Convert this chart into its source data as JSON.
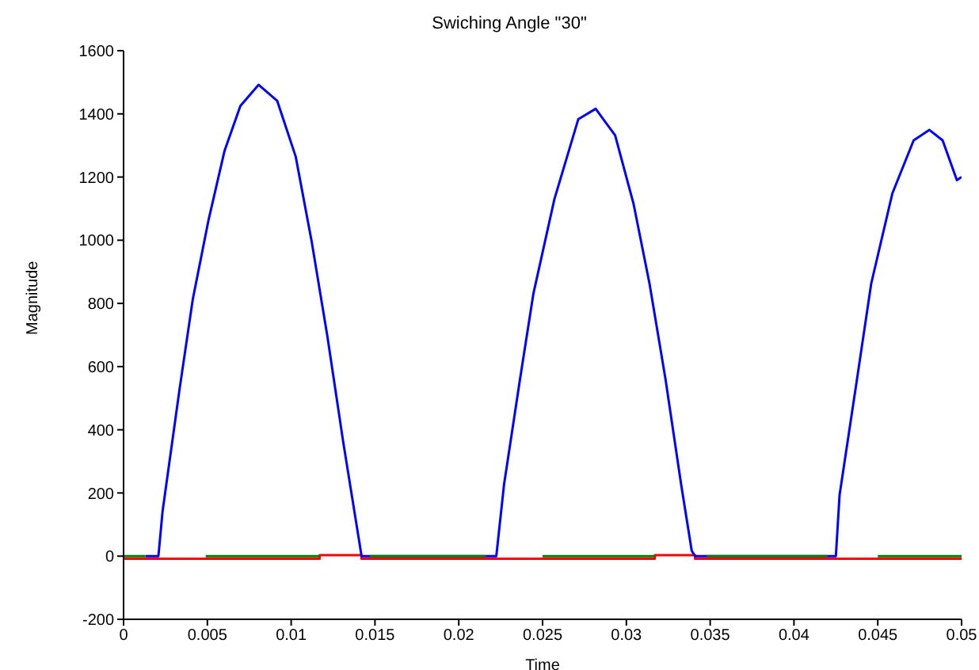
{
  "chart_data": {
    "type": "line",
    "title": "Swiching Angle \"30\"",
    "xlabel": "Time",
    "ylabel": "Magnitude",
    "xlim": [
      0,
      0.05
    ],
    "xticks": [
      0,
      0.005,
      0.01,
      0.015,
      0.02,
      0.025,
      0.03,
      0.035,
      0.04,
      0.045,
      0.05
    ],
    "ylim": [
      -200,
      1600
    ],
    "yticks": [
      -200,
      0,
      200,
      400,
      600,
      800,
      1000,
      1200,
      1400,
      1600
    ],
    "grid": false,
    "legend": false,
    "marker": "none",
    "line_style": "solid",
    "series": [
      {
        "color": "#ff0000",
        "x": [
          0,
          0.0117,
          0.0117,
          0.0142,
          0.0142,
          0.0317,
          0.0317,
          0.0341,
          0.0341,
          0.05
        ],
        "values": [
          -8,
          -8,
          3,
          3,
          -8,
          -8,
          3,
          3,
          -8,
          -8
        ]
      },
      {
        "color": "#0000ff",
        "x": [
          0.0013,
          0.00208,
          0.00233,
          0.00334,
          0.00413,
          0.00507,
          0.00602,
          0.00697,
          0.00806,
          0.00917,
          0.01027,
          0.01122,
          0.01216,
          0.01311,
          0.01405,
          0.0142,
          0.02224,
          0.0227,
          0.02366,
          0.02445,
          0.02571,
          0.02713,
          0.02817,
          0.02933,
          0.03043,
          0.03138,
          0.03233,
          0.03327,
          0.0339,
          0.0341,
          0.0425,
          0.04272,
          0.04367,
          0.04461,
          0.04587,
          0.04714,
          0.04808,
          0.04887,
          0.04972,
          0.05
        ],
        "values": [
          0,
          0,
          143,
          528,
          813,
          1064,
          1282,
          1425,
          1492,
          1441,
          1265,
          997,
          696,
          360,
          50,
          0,
          0,
          226,
          562,
          830,
          1131,
          1383,
          1416,
          1332,
          1115,
          863,
          562,
          226,
          17,
          0,
          0,
          193,
          528,
          863,
          1148,
          1316,
          1349,
          1316,
          1190,
          1200
        ]
      },
      {
        "color": "#008000",
        "x": [
          0,
          0.0013
        ],
        "values": [
          0,
          0
        ]
      },
      {
        "color": "#008000",
        "x": [
          0.0049,
          0.0117
        ],
        "values": [
          0,
          0
        ]
      },
      {
        "color": "#008000",
        "x": [
          0.0147,
          0.0216
        ],
        "values": [
          0,
          0
        ]
      },
      {
        "color": "#008000",
        "x": [
          0.025,
          0.0317
        ],
        "values": [
          0,
          0
        ]
      },
      {
        "color": "#008000",
        "x": [
          0.0348,
          0.042
        ],
        "values": [
          0,
          0
        ]
      },
      {
        "color": "#008000",
        "x": [
          0.045,
          0.05
        ],
        "values": [
          0,
          0
        ]
      }
    ]
  }
}
